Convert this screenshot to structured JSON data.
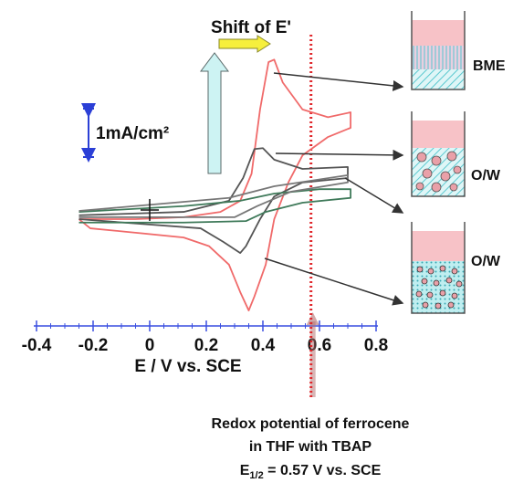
{
  "chart_data": {
    "type": "line",
    "title": "Shift of E'",
    "x_label": "E / V vs. SCE",
    "scale_bar_label": "1mA/cm²",
    "xlim": [
      -0.4,
      0.8
    ],
    "xticks": [
      -0.4,
      -0.2,
      0,
      0.2,
      0.4,
      0.6,
      0.8
    ],
    "ylim": [
      -2.4,
      3.4
    ],
    "vline_x": 0.57,
    "vline_color": "#e0262b",
    "series": [
      {
        "color": "#f06a6a",
        "x": [
          -0.25,
          -0.05,
          0.12,
          0.25,
          0.32,
          0.36,
          0.39,
          0.42,
          0.44,
          0.47,
          0.54,
          0.63,
          0.71,
          0.71,
          0.63,
          0.54,
          0.49,
          0.44,
          0.41,
          0.37,
          0.35,
          0.32,
          0.28,
          0.21,
          0.12,
          -0.05,
          -0.21,
          -0.25
        ],
        "values": [
          -0.19,
          -0.19,
          -0.15,
          -0.04,
          0.19,
          0.75,
          2.08,
          3.06,
          3.11,
          2.64,
          2.08,
          1.92,
          2.02,
          1.7,
          1.51,
          1.13,
          0.57,
          -0.19,
          -1.13,
          -1.79,
          -2.08,
          -1.7,
          -1.13,
          -0.75,
          -0.57,
          -0.47,
          -0.38,
          -0.19
        ]
      },
      {
        "color": "#555555",
        "x": [
          -0.25,
          0.12,
          0.28,
          0.33,
          0.37,
          0.4,
          0.44,
          0.54,
          0.7,
          0.7,
          0.54,
          0.44,
          0.39,
          0.34,
          0.32,
          0.26,
          0.18,
          -0.05,
          -0.25
        ],
        "values": [
          -0.11,
          -0.04,
          0.19,
          0.66,
          1.26,
          1.28,
          1.04,
          0.85,
          0.89,
          0.66,
          0.57,
          0.28,
          -0.19,
          -0.75,
          -0.89,
          -0.66,
          -0.38,
          -0.28,
          -0.19
        ]
      },
      {
        "color": "#3f7a5a",
        "x": [
          -0.25,
          0.12,
          0.32,
          0.44,
          0.6,
          0.71,
          0.71,
          0.54,
          0.41,
          0.34,
          0.12,
          -0.25
        ],
        "values": [
          -0.04,
          0.08,
          0.19,
          0.34,
          0.43,
          0.43,
          0.25,
          0.15,
          -0.04,
          -0.23,
          -0.26,
          -0.26
        ]
      },
      {
        "color": "#777777",
        "x": [
          -0.25,
          0.28,
          0.44,
          0.7,
          0.7,
          0.5,
          0.38,
          0.3,
          -0.25
        ],
        "values": [
          -0.02,
          0.25,
          0.49,
          0.72,
          0.57,
          0.38,
          0.08,
          -0.15,
          -0.15
        ]
      }
    ]
  },
  "beakers": [
    {
      "label": "BME"
    },
    {
      "label": "O/W"
    },
    {
      "label": "O/W"
    }
  ],
  "caption": {
    "line1": "Redox potential of ferrocene",
    "line2": "in THF with TBAP",
    "symbol": "E",
    "subscript": "1/2",
    "rest": " = 0.57 V vs. SCE"
  }
}
